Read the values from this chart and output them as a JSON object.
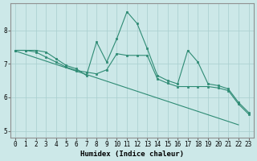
{
  "x": [
    0,
    1,
    2,
    3,
    4,
    5,
    6,
    7,
    8,
    9,
    10,
    11,
    12,
    13,
    14,
    15,
    16,
    17,
    18,
    19,
    20,
    21,
    22,
    23
  ],
  "y_upper": [
    7.4,
    7.4,
    7.4,
    7.35,
    7.15,
    6.95,
    6.85,
    6.65,
    7.65,
    7.05,
    7.75,
    8.55,
    8.2,
    7.45,
    6.65,
    6.5,
    6.4,
    7.4,
    7.05,
    6.4,
    6.35,
    6.25,
    5.85,
    5.55
  ],
  "y_lower": [
    7.4,
    7.4,
    7.35,
    7.2,
    7.05,
    6.9,
    6.8,
    6.75,
    6.7,
    6.82,
    7.3,
    7.25,
    7.25,
    7.25,
    6.55,
    6.42,
    6.32,
    6.32,
    6.32,
    6.32,
    6.28,
    6.2,
    5.8,
    5.5
  ],
  "y_trend_x": [
    0,
    1,
    2,
    3,
    4,
    5,
    6,
    7,
    8,
    9,
    10,
    11,
    12,
    13,
    14,
    15,
    16,
    17,
    18,
    19,
    20,
    21,
    22,
    23
  ],
  "y_trend": [
    7.38,
    7.28,
    7.18,
    7.08,
    6.98,
    6.88,
    6.78,
    6.68,
    6.58,
    6.48,
    6.38,
    6.28,
    6.18,
    6.08,
    5.98,
    5.88,
    5.78,
    5.68,
    5.58,
    5.48,
    5.38,
    5.28,
    5.18,
    null
  ],
  "color": "#2e8b74",
  "bg_color": "#cce8e8",
  "grid_color": "#a8cece",
  "xlabel": "Humidex (Indice chaleur)",
  "xlim": [
    -0.5,
    23.5
  ],
  "ylim": [
    4.8,
    8.8
  ],
  "yticks": [
    5,
    6,
    7,
    8
  ],
  "xticks": [
    0,
    1,
    2,
    3,
    4,
    5,
    6,
    7,
    8,
    9,
    10,
    11,
    12,
    13,
    14,
    15,
    16,
    17,
    18,
    19,
    20,
    21,
    22,
    23
  ]
}
